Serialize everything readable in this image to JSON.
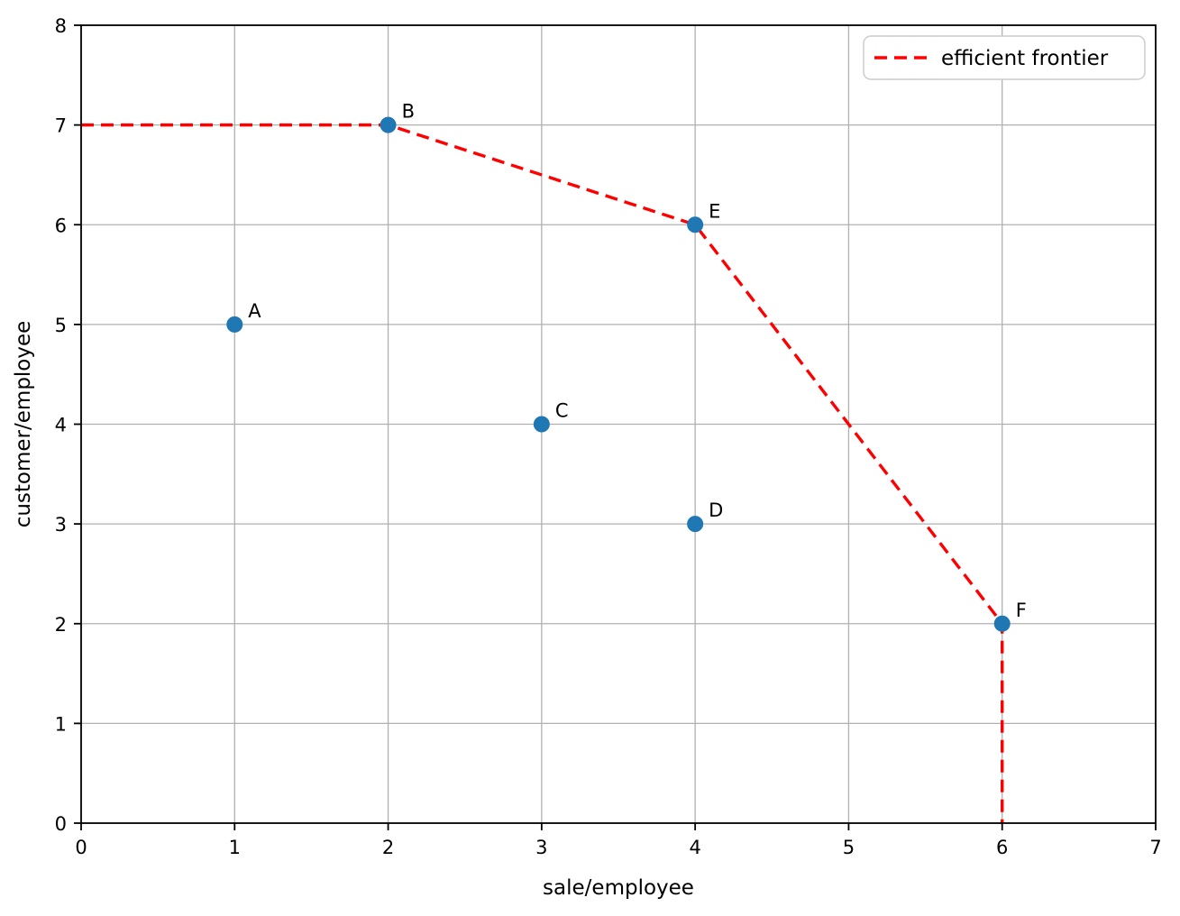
{
  "chart_data": {
    "type": "scatter",
    "title": "",
    "xlabel": "sale/employee",
    "ylabel": "customer/employee",
    "xlim": [
      0,
      7
    ],
    "ylim": [
      0,
      8
    ],
    "xticks": [
      0,
      1,
      2,
      3,
      4,
      5,
      6,
      7
    ],
    "yticks": [
      0,
      1,
      2,
      3,
      4,
      5,
      6,
      7,
      8
    ],
    "grid": true,
    "points": [
      {
        "label": "A",
        "x": 1,
        "y": 5
      },
      {
        "label": "B",
        "x": 2,
        "y": 7
      },
      {
        "label": "C",
        "x": 3,
        "y": 4
      },
      {
        "label": "D",
        "x": 4,
        "y": 3
      },
      {
        "label": "E",
        "x": 4,
        "y": 6
      },
      {
        "label": "F",
        "x": 6,
        "y": 2
      }
    ],
    "series": [
      {
        "name": "efficient frontier",
        "type": "line",
        "style": "dashed",
        "x": [
          0,
          2,
          4,
          6,
          6
        ],
        "y": [
          7,
          7,
          6,
          2,
          0
        ]
      }
    ],
    "legend": {
      "position": "upper right",
      "entries": [
        {
          "label": "efficient frontier",
          "style": "dashed",
          "color": "#ff0000"
        }
      ]
    },
    "colors": {
      "marker": "#1f77b4",
      "frontier": "#ff0000",
      "grid": "#b0b0b0",
      "spine": "#000000",
      "text": "#000000",
      "legend_border": "#cccccc",
      "background": "#ffffff"
    }
  }
}
